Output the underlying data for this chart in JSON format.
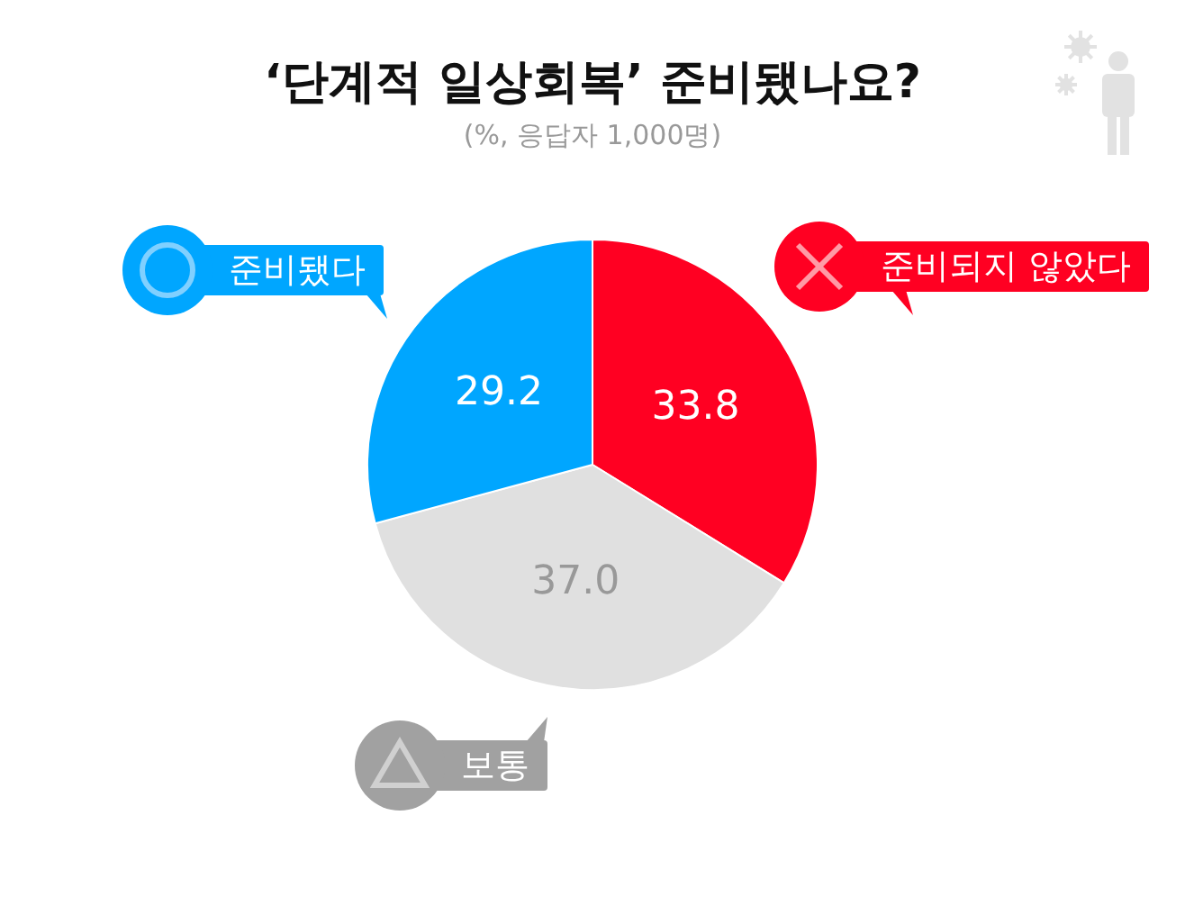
{
  "chart_data": {
    "type": "pie",
    "title": "‘단계적 일상회복’ 준비됐나요?",
    "subtitle": "(%, 응답자 1,000명)",
    "categories": [
      "준비되지 않았다",
      "보통",
      "준비됐다"
    ],
    "values": [
      33.8,
      37.0,
      29.2
    ],
    "colors": [
      "#ff0022",
      "#e0e0e0",
      "#00a6ff"
    ],
    "value_labels": [
      "33.8",
      "37.0",
      "29.2"
    ]
  }
}
